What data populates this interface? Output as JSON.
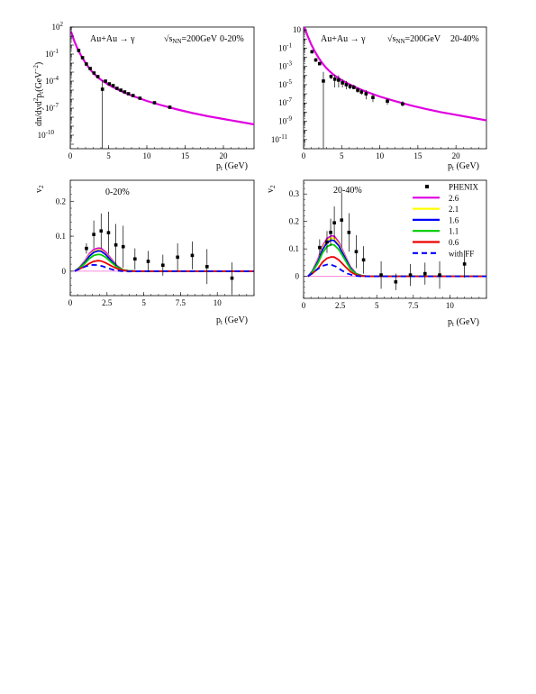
{
  "chart_data": [
    {
      "type": "line",
      "panel": "top-left",
      "label_main": "Au+Au → γ",
      "label_energy_sqrt": "√",
      "label_energy_s": "s",
      "label_energy_sub": "NN",
      "label_energy_val": "=200GeV",
      "label_centrality": "0-20%",
      "ylabel_pre": "dn/dyd",
      "ylabel_sup": "2",
      "ylabel_mid": "p",
      "ylabel_sub": "t",
      "ylabel_unit": "(GeV",
      "ylabel_unit_sup": "−2",
      "ylabel_close": ")",
      "xlabel_p": "p",
      "xlabel_sub": "t",
      "xlabel_unit": " (GeV)",
      "log_y": true,
      "xlim": [
        0,
        24
      ],
      "ylim_log10": [
        -11.5,
        2
      ],
      "ytick_exponents": [
        -10,
        -7,
        -4,
        -1,
        2
      ],
      "ytick_labels": [
        "10",
        "10",
        "10",
        "10",
        "10"
      ],
      "ytick_sups": [
        "-10",
        "-7",
        "-4",
        "-1",
        "2"
      ],
      "xticks": [
        0,
        5,
        10,
        15,
        20
      ],
      "xtick_labels": [
        "0",
        "5",
        "10",
        "15",
        "20"
      ],
      "curve_color": "#e000e0",
      "curve_x": [
        0.1,
        0.5,
        1,
        1.5,
        2,
        2.5,
        3,
        3.5,
        4,
        5,
        6,
        7,
        8,
        9,
        10,
        12,
        14,
        16,
        18,
        20,
        22,
        24
      ],
      "curve_log10y": [
        1.5,
        0.5,
        -0.5,
        -1.3,
        -2.0,
        -2.6,
        -3.1,
        -3.5,
        -3.85,
        -4.4,
        -4.85,
        -5.25,
        -5.6,
        -5.9,
        -6.2,
        -6.7,
        -7.15,
        -7.55,
        -7.9,
        -8.2,
        -8.5,
        -8.8
      ],
      "data_x": [
        1.1,
        1.6,
        2.1,
        2.6,
        3.1,
        3.6,
        4.2,
        4.6,
        5.1,
        5.6,
        6.1,
        6.6,
        7.1,
        7.6,
        8.2,
        9.1,
        11.0,
        13.0
      ],
      "data_log10y": [
        -0.6,
        -1.4,
        -2.1,
        -2.6,
        -3.1,
        -3.5,
        -4.9,
        -4.0,
        -4.3,
        -4.5,
        -4.8,
        -5.0,
        -5.2,
        -5.4,
        -5.6,
        -5.9,
        -6.4,
        -6.9
      ],
      "data_err_low": [
        -0.8,
        -1.6,
        -2.3,
        -2.8,
        -3.3,
        -3.7,
        -11.5,
        -4.2,
        -4.45,
        -4.65,
        -4.95,
        -5.15,
        -5.35,
        -5.55,
        -5.75,
        -6.05,
        -6.55,
        -7.1
      ],
      "data_err_high": [
        -0.45,
        -1.25,
        -1.95,
        -2.45,
        -2.95,
        -3.35,
        -3.9,
        -3.85,
        -4.15,
        -4.35,
        -4.65,
        -4.85,
        -5.05,
        -5.25,
        -5.45,
        -5.75,
        -6.25,
        -6.7
      ]
    },
    {
      "type": "line",
      "panel": "top-right",
      "label_main": "Au+Au → γ",
      "label_energy_sqrt": "√",
      "label_energy_s": "s",
      "label_energy_sub": "NN",
      "label_energy_val": "=200GeV",
      "label_centrality": "20-40%",
      "xlabel_p": "p",
      "xlabel_sub": "t",
      "xlabel_unit": " (GeV)",
      "log_y": true,
      "xlim": [
        0,
        24
      ],
      "ylim_log10": [
        -12.0,
        1.3
      ],
      "ytick_exponents": [
        -11,
        -9,
        -7,
        -5,
        -3,
        -1,
        1
      ],
      "ytick_labels": [
        "10",
        "10",
        "10",
        "10",
        "10",
        "10",
        "10"
      ],
      "ytick_sups": [
        "-11",
        "-9",
        "-7",
        "-5",
        "-3",
        "-1",
        ""
      ],
      "xticks": [
        0,
        5,
        10,
        15,
        20
      ],
      "xtick_labels": [
        "0",
        "5",
        "10",
        "15",
        "20"
      ],
      "curve_color": "#e000e0",
      "curve_x": [
        0.1,
        0.5,
        1,
        1.5,
        2,
        2.5,
        3,
        3.5,
        4,
        5,
        6,
        7,
        8,
        9,
        10,
        12,
        14,
        16,
        18,
        20,
        22,
        24
      ],
      "curve_log10y": [
        1.3,
        0.4,
        -0.6,
        -1.4,
        -2.1,
        -2.7,
        -3.2,
        -3.6,
        -3.95,
        -4.5,
        -4.95,
        -5.35,
        -5.7,
        -6.0,
        -6.3,
        -6.8,
        -7.25,
        -7.65,
        -8.0,
        -8.3,
        -8.6,
        -8.9
      ],
      "data_x": [
        1.1,
        1.6,
        2.1,
        2.6,
        3.6,
        4.1,
        4.6,
        5.1,
        5.6,
        6.1,
        6.6,
        7.1,
        7.6,
        8.2,
        9.1,
        11.0,
        13.0
      ],
      "data_log10y": [
        -1.4,
        -2.3,
        -2.7,
        -4.6,
        -4.1,
        -4.4,
        -4.5,
        -4.8,
        -5.0,
        -5.2,
        -5.3,
        -5.6,
        -5.8,
        -6.0,
        -6.4,
        -6.8,
        -7.1
      ],
      "data_err_low": [
        -1.6,
        -2.5,
        -2.9,
        -12.0,
        -4.4,
        -5.3,
        -5.3,
        -5.3,
        -5.5,
        -5.5,
        -5.5,
        -5.9,
        -6.1,
        -6.6,
        -6.9,
        -7.2,
        -7.4
      ],
      "data_err_high": [
        -1.2,
        -2.1,
        -2.5,
        -3.6,
        -3.9,
        -3.9,
        -4.0,
        -4.4,
        -4.6,
        -4.9,
        -5.0,
        -5.3,
        -5.5,
        -5.6,
        -6.0,
        -6.5,
        -6.8
      ]
    },
    {
      "type": "line",
      "panel": "bottom-left",
      "label_centrality": "0-20%",
      "ylabel": "v",
      "ylabel_sub": "2",
      "xlabel_p": "p",
      "xlabel_sub": "t",
      "xlabel_unit": " (GeV)",
      "xlim": [
        0,
        12.5
      ],
      "ylim": [
        -0.07,
        0.26
      ],
      "yticks": [
        0,
        0.1,
        0.2
      ],
      "ytick_labels": [
        "0",
        "0.1",
        "0.2"
      ],
      "xticks": [
        0,
        2.5,
        5,
        7.5,
        10
      ],
      "xtick_labels": [
        "0",
        "2.5",
        "5",
        "7.5",
        "10"
      ],
      "zero_line_color": "#ff66cc",
      "series": [
        {
          "color": "#e000e0",
          "dashed": false,
          "x": [
            0.3,
            0.6,
            1.0,
            1.3,
            1.6,
            1.9,
            2.1,
            2.4,
            2.8,
            3.2,
            3.6,
            4.0,
            4.5,
            5,
            12.5
          ],
          "y": [
            0.0,
            0.01,
            0.03,
            0.05,
            0.062,
            0.066,
            0.065,
            0.055,
            0.035,
            0.015,
            0.004,
            0.001,
            0,
            0,
            0
          ]
        },
        {
          "color": "#ffff00",
          "dashed": false,
          "x": [
            0.3,
            0.6,
            1.0,
            1.3,
            1.6,
            1.9,
            2.1,
            2.4,
            2.8,
            3.2,
            3.6,
            4.0,
            4.5,
            5,
            12.5
          ],
          "y": [
            0.0,
            0.01,
            0.028,
            0.046,
            0.057,
            0.061,
            0.06,
            0.05,
            0.032,
            0.014,
            0.004,
            0.001,
            0,
            0,
            0
          ]
        },
        {
          "color": "#0000ff",
          "dashed": false,
          "x": [
            0.3,
            0.6,
            1.0,
            1.3,
            1.6,
            1.9,
            2.1,
            2.4,
            2.8,
            3.2,
            3.6,
            4.0,
            4.5,
            5,
            12.5
          ],
          "y": [
            0.0,
            0.009,
            0.026,
            0.043,
            0.054,
            0.058,
            0.057,
            0.048,
            0.03,
            0.013,
            0.003,
            0.001,
            0,
            0,
            0
          ]
        },
        {
          "color": "#00cc00",
          "dashed": false,
          "x": [
            0.3,
            0.6,
            1.0,
            1.3,
            1.6,
            1.9,
            2.1,
            2.4,
            2.8,
            3.2,
            3.6,
            4.0,
            4.5,
            5,
            12.5
          ],
          "y": [
            0.0,
            0.008,
            0.022,
            0.036,
            0.045,
            0.048,
            0.047,
            0.04,
            0.025,
            0.011,
            0.003,
            0.001,
            0,
            0,
            0
          ]
        },
        {
          "color": "#ee0000",
          "dashed": false,
          "x": [
            0.3,
            0.6,
            1.0,
            1.3,
            1.6,
            1.9,
            2.1,
            2.4,
            2.8,
            3.2,
            3.6,
            4.0,
            4.5,
            5,
            12.5
          ],
          "y": [
            0.0,
            0.006,
            0.014,
            0.022,
            0.028,
            0.03,
            0.029,
            0.024,
            0.015,
            0.007,
            0.002,
            0.0,
            0,
            0,
            0
          ]
        },
        {
          "color": "#0000ff",
          "dashed": true,
          "x": [
            0.3,
            0.6,
            1.0,
            1.3,
            1.6,
            1.9,
            2.2,
            2.6,
            3.0,
            3.5,
            4.0,
            5,
            12.5
          ],
          "y": [
            0.0,
            0.006,
            0.013,
            0.017,
            0.018,
            0.017,
            0.014,
            0.008,
            0.003,
            0.0,
            -0.001,
            0,
            0
          ]
        }
      ],
      "points": {
        "x": [
          1.1,
          1.6,
          2.1,
          2.6,
          3.1,
          3.6,
          4.4,
          5.3,
          6.3,
          7.3,
          8.3,
          9.3,
          11.0
        ],
        "y": [
          0.065,
          0.105,
          0.115,
          0.11,
          0.075,
          0.07,
          0.035,
          0.028,
          0.017,
          0.04,
          0.045,
          0.013,
          -0.02
        ],
        "err": [
          0.015,
          0.04,
          0.05,
          0.06,
          0.06,
          0.06,
          0.03,
          0.03,
          0.03,
          0.04,
          0.04,
          0.05,
          0.045
        ]
      }
    },
    {
      "type": "line",
      "panel": "bottom-right",
      "label_centrality": "20-40%",
      "ylabel": "v",
      "ylabel_sub": "2",
      "xlabel_p": "p",
      "xlabel_sub": "t",
      "xlabel_unit": " (GeV)",
      "xlim": [
        0,
        12.5
      ],
      "ylim": [
        -0.08,
        0.35
      ],
      "yticks": [
        0,
        0.1,
        0.2,
        0.3
      ],
      "ytick_labels": [
        "0",
        "0.1",
        "0.2",
        "0.3"
      ],
      "xticks": [
        0,
        2.5,
        5,
        7.5,
        10
      ],
      "xtick_labels": [
        "0",
        "2.5",
        "5",
        "7.5",
        "10"
      ],
      "zero_line_color": "#ff66cc",
      "legend": [
        {
          "label": "PHENIX",
          "marker": true
        },
        {
          "label": "2.6",
          "color": "#e000e0",
          "dashed": false
        },
        {
          "label": "2.1",
          "color": "#ffff00",
          "dashed": false
        },
        {
          "label": "1.6",
          "color": "#0000ff",
          "dashed": false
        },
        {
          "label": "1.1",
          "color": "#00cc00",
          "dashed": false
        },
        {
          "label": "0.6",
          "color": "#ee0000",
          "dashed": false
        },
        {
          "label": "with FF",
          "color": "#0000ff",
          "dashed": true
        }
      ],
      "series": [
        {
          "color": "#e000e0",
          "dashed": false,
          "x": [
            0.3,
            0.6,
            1.0,
            1.3,
            1.6,
            1.9,
            2.1,
            2.4,
            2.8,
            3.2,
            3.6,
            4.0,
            4.5,
            5,
            12.5
          ],
          "y": [
            0.0,
            0.02,
            0.065,
            0.11,
            0.138,
            0.148,
            0.146,
            0.125,
            0.08,
            0.035,
            0.01,
            0.002,
            0,
            0,
            0
          ]
        },
        {
          "color": "#ffff00",
          "dashed": false,
          "x": [
            0.3,
            0.6,
            1.0,
            1.3,
            1.6,
            1.9,
            2.1,
            2.4,
            2.8,
            3.2,
            3.6,
            4.0,
            4.5,
            5,
            12.5
          ],
          "y": [
            0.0,
            0.019,
            0.06,
            0.104,
            0.13,
            0.14,
            0.138,
            0.118,
            0.076,
            0.033,
            0.01,
            0.002,
            0,
            0,
            0
          ]
        },
        {
          "color": "#0000ff",
          "dashed": false,
          "x": [
            0.3,
            0.6,
            1.0,
            1.3,
            1.6,
            1.9,
            2.1,
            2.4,
            2.8,
            3.2,
            3.6,
            4.0,
            4.5,
            5,
            12.5
          ],
          "y": [
            0.0,
            0.018,
            0.057,
            0.098,
            0.123,
            0.132,
            0.13,
            0.112,
            0.072,
            0.031,
            0.009,
            0.002,
            0,
            0,
            0
          ]
        },
        {
          "color": "#00cc00",
          "dashed": false,
          "x": [
            0.3,
            0.6,
            1.0,
            1.3,
            1.6,
            1.9,
            2.1,
            2.4,
            2.8,
            3.2,
            3.6,
            4.0,
            4.5,
            5,
            12.5
          ],
          "y": [
            0.0,
            0.016,
            0.05,
            0.086,
            0.108,
            0.116,
            0.114,
            0.098,
            0.063,
            0.027,
            0.008,
            0.002,
            0,
            0,
            0
          ]
        },
        {
          "color": "#ee0000",
          "dashed": false,
          "x": [
            0.3,
            0.6,
            1.0,
            1.3,
            1.6,
            1.9,
            2.1,
            2.4,
            2.8,
            3.2,
            3.6,
            4.0,
            4.5,
            5,
            12.5
          ],
          "y": [
            0.0,
            0.01,
            0.03,
            0.052,
            0.066,
            0.071,
            0.07,
            0.06,
            0.038,
            0.017,
            0.005,
            0.001,
            0,
            0,
            0
          ]
        },
        {
          "color": "#0000ff",
          "dashed": true,
          "x": [
            0.3,
            0.6,
            1.0,
            1.3,
            1.6,
            1.9,
            2.2,
            2.6,
            3.0,
            3.5,
            4.0,
            5,
            12.5
          ],
          "y": [
            0.0,
            0.012,
            0.028,
            0.038,
            0.043,
            0.042,
            0.036,
            0.022,
            0.01,
            0.002,
            0.0,
            0,
            0
          ]
        }
      ],
      "points": {
        "x": [
          1.1,
          1.6,
          1.85,
          2.1,
          2.6,
          3.1,
          3.6,
          4.1,
          5.3,
          6.3,
          7.3,
          8.3,
          9.3,
          11.0
        ],
        "y": [
          0.105,
          0.125,
          0.16,
          0.195,
          0.205,
          0.16,
          0.09,
          0.06,
          0.005,
          -0.02,
          0.005,
          0.01,
          0.005,
          0.045
        ],
        "err": [
          0.03,
          0.04,
          0.05,
          0.06,
          0.1,
          0.07,
          0.06,
          0.05,
          0.05,
          0.03,
          0.04,
          0.04,
          0.05,
          0.05
        ]
      }
    }
  ]
}
